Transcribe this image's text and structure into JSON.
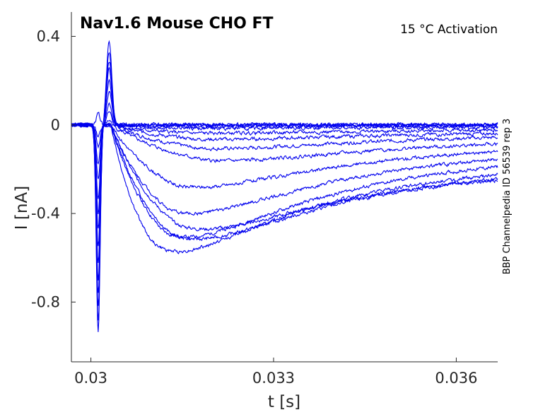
{
  "chart_data": {
    "type": "line",
    "title": "Nav1.6  Mouse  CHO FT",
    "condition": "15 °C  Activation",
    "side_note": "BBP Channelpedia ID 56539 rep 3",
    "xlabel": "t [s]",
    "ylabel": "I [nA]",
    "xlim": [
      0.02968,
      0.03668
    ],
    "ylim": [
      -1.07,
      0.51
    ],
    "xticks": [
      0.03,
      0.033,
      0.036
    ],
    "xtick_labels": [
      "0.03",
      "0.033",
      "0.036"
    ],
    "yticks": [
      0.4,
      0.0,
      -0.4,
      -0.8
    ],
    "ytick_labels": [
      "0.4",
      "0",
      "-0.4",
      "-0.8"
    ],
    "grid": false,
    "line_color": "#0000ee",
    "pulse_start": 0.03003,
    "series_params": [
      {
        "dip": -0.93,
        "peak": 0.38,
        "sag": 0.0,
        "t_min": 0.0311,
        "tail": 0.0
      },
      {
        "dip": -0.88,
        "peak": 0.33,
        "sag": 0.0,
        "t_min": 0.0311,
        "tail": 0.0
      },
      {
        "dip": -0.82,
        "peak": 0.29,
        "sag": 0.0,
        "t_min": 0.0312,
        "tail": 0.0
      },
      {
        "dip": -0.76,
        "peak": 0.25,
        "sag": -0.01,
        "t_min": 0.0313,
        "tail": -0.005
      },
      {
        "dip": -0.7,
        "peak": 0.2,
        "sag": -0.02,
        "t_min": 0.0314,
        "tail": -0.01
      },
      {
        "dip": -0.62,
        "peak": 0.15,
        "sag": -0.05,
        "t_min": 0.0315,
        "tail": -0.02
      },
      {
        "dip": -0.55,
        "peak": 0.1,
        "sag": -0.09,
        "t_min": 0.0317,
        "tail": -0.03
      },
      {
        "dip": -0.47,
        "peak": 0.06,
        "sag": -0.15,
        "t_min": 0.0318,
        "tail": -0.04
      },
      {
        "dip": -0.4,
        "peak": 0.02,
        "sag": -0.23,
        "t_min": 0.0319,
        "tail": -0.06
      },
      {
        "dip": -0.33,
        "peak": 0.0,
        "sag": -0.39,
        "t_min": 0.0314,
        "tail": -0.08
      },
      {
        "dip": -0.25,
        "peak": 0.0,
        "sag": -0.55,
        "t_min": 0.0313,
        "tail": -0.1
      },
      {
        "dip": -0.18,
        "peak": 0.0,
        "sag": -0.69,
        "t_min": 0.0312,
        "tail": -0.12
      },
      {
        "dip": -0.1,
        "peak": 0.0,
        "sag": -0.75,
        "t_min": 0.031,
        "tail": -0.16
      },
      {
        "dip": -0.05,
        "peak": 0.0,
        "sag": -0.7,
        "t_min": 0.0313,
        "tail": -0.18
      },
      {
        "dip": 0.05,
        "peak": 0.0,
        "sag": -0.64,
        "t_min": 0.0314,
        "tail": -0.19
      }
    ]
  }
}
